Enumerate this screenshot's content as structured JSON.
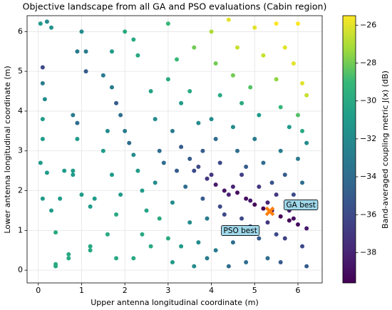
{
  "chart_data": {
    "type": "scatter",
    "title": "Objective landscape from all GA and PSO evaluations (Cabin region)",
    "xlabel": "Upper antenna longitudinal coordinate (m)",
    "ylabel": "Lower antenna longitudinal coordinate (m)",
    "colorbar_label": "Band-averaged coupling metric J(x) (dB)",
    "cmap": "viridis",
    "grid": true,
    "xlim": [
      -0.26,
      6.56
    ],
    "ylim": [
      -0.32,
      6.4
    ],
    "clim": [
      -39.6,
      -25.5
    ],
    "xticks": [
      0,
      1,
      2,
      3,
      4,
      5,
      6
    ],
    "yticks": [
      0,
      1,
      2,
      3,
      4,
      5,
      6
    ],
    "cticks": [
      {
        "value": -38,
        "label": "−38"
      },
      {
        "value": -36,
        "label": "−36"
      },
      {
        "value": -34,
        "label": "−34"
      },
      {
        "value": -32,
        "label": "−32"
      },
      {
        "value": -30,
        "label": "−30"
      },
      {
        "value": -28,
        "label": "−28"
      },
      {
        "value": -26,
        "label": "−26"
      }
    ],
    "x": [
      0.05,
      0.2,
      0.3,
      0.1,
      0.1,
      0.15,
      0.1,
      0.1,
      0.05,
      0.2,
      0.1,
      0.3,
      0.4,
      0.4,
      0.4,
      0.7,
      0.7,
      0.5,
      0.6,
      0.8,
      0.8,
      0.9,
      0.8,
      0.9,
      1.0,
      0.9,
      1.1,
      1.1,
      1.2,
      1.2,
      1.3,
      1.2,
      1.0,
      1.5,
      1.7,
      1.8,
      1.9,
      1.6,
      1.5,
      1.7,
      1.9,
      1.8,
      1.6,
      1.8,
      1.7,
      2.0,
      2.2,
      2.3,
      2.0,
      2.1,
      2.2,
      2.3,
      2.4,
      2.5,
      2.4,
      2.6,
      2.2,
      2.6,
      2.7,
      2.8,
      2.9,
      2.7,
      2.8,
      3.0,
      3.1,
      3.0,
      3.2,
      3.0,
      3.3,
      3.1,
      3.3,
      3.2,
      3.4,
      3.1,
      3.5,
      3.3,
      3.6,
      3.6,
      3.5,
      3.7,
      3.8,
      3.7,
      3.9,
      3.8,
      3.9,
      3.7,
      3.9,
      4.0,
      4.1,
      4.2,
      4.0,
      4.1,
      4.2,
      4.1,
      4.3,
      4.2,
      4.3,
      4.1,
      4.4,
      4.4,
      4.6,
      4.5,
      4.7,
      4.5,
      4.6,
      4.7,
      4.6,
      4.8,
      4.7,
      4.5,
      4.8,
      5.0,
      5.2,
      4.9,
      5.1,
      5.0,
      5.2,
      5.1,
      5.0,
      5.2,
      5.3,
      5.1,
      5.3,
      5.5,
      5.7,
      5.5,
      5.6,
      5.8,
      5.6,
      5.7,
      5.5,
      5.6,
      5.8,
      5.7,
      5.6,
      6.0,
      5.9,
      6.1,
      6.2,
      6.0,
      6.1,
      6.2,
      6.0,
      6.1,
      6.2,
      6.0,
      6.2,
      6.1,
      6.2,
      4.4,
      4.9,
      5.4,
      5.9,
      4.5,
      5.3,
      5.8,
      4.0,
      3.6,
      3.5,
      4.8,
      5.4,
      5.9,
      4.3,
      4.9,
      5.5
    ],
    "y": [
      6.2,
      6.25,
      6.1,
      5.1,
      4.7,
      4.3,
      3.8,
      3.3,
      2.7,
      2.45,
      1.8,
      1.5,
      0.95,
      0.15,
      0.1,
      0.3,
      0.4,
      1.8,
      2.5,
      2.5,
      2.4,
      3.3,
      3.9,
      3.7,
      6.0,
      5.5,
      5.5,
      5.0,
      0.6,
      0.5,
      1.8,
      1.6,
      1.9,
      4.9,
      4.6,
      4.2,
      3.9,
      3.5,
      3.0,
      2.4,
      1.9,
      1.4,
      0.9,
      0.3,
      5.5,
      6.0,
      5.8,
      5.4,
      3.5,
      3.2,
      2.9,
      2.5,
      2.0,
      1.5,
      0.9,
      0.6,
      0.3,
      4.5,
      3.8,
      3.0,
      2.7,
      2.2,
      1.3,
      0.8,
      0.2,
      6.2,
      5.3,
      4.8,
      4.2,
      3.5,
      3.1,
      2.5,
      2.1,
      1.7,
      1.2,
      0.6,
      0.1,
      5.6,
      4.5,
      3.7,
      3.0,
      2.6,
      2.3,
      1.8,
      1.3,
      0.7,
      0.3,
      6.0,
      5.2,
      4.4,
      3.8,
      3.3,
      2.7,
      2.15,
      2.0,
      1.6,
      1.0,
      0.5,
      0.1,
      6.3,
      5.6,
      4.9,
      4.2,
      3.6,
      3.0,
      2.4,
      1.95,
      1.8,
      1.3,
      0.7,
      0.2,
      6.1,
      5.4,
      4.6,
      3.9,
      3.3,
      2.7,
      2.1,
      1.65,
      1.55,
      1.2,
      0.8,
      0.3,
      6.2,
      5.6,
      4.8,
      4.1,
      3.6,
      3.0,
      2.4,
      1.9,
      1.35,
      1.25,
      0.8,
      0.2,
      6.2,
      5.2,
      4.7,
      4.4,
      3.9,
      3.5,
      3.2,
      2.8,
      2.2,
      1.7,
      1.15,
      1.05,
      0.6,
      0.1,
      1.9,
      1.75,
      1.5,
      1.3,
      2.1,
      1.7,
      1.5,
      2.4,
      2.5,
      2.8,
      2.6,
      2.2,
      1.9,
      1.4,
      1.1,
      0.9
    ],
    "values": [
      -31,
      -32,
      -31.5,
      -36,
      -33,
      -32,
      -31,
      -31,
      -31,
      -31,
      -31,
      -31,
      -30,
      -30,
      -30,
      -30,
      -30,
      -31,
      -31,
      -31,
      -31,
      -31,
      -33,
      -34,
      -32,
      -33,
      -33,
      -35,
      -30,
      -30,
      -31,
      -31,
      -31,
      -33,
      -33,
      -35,
      -34,
      -32,
      -31,
      -31,
      -31,
      -30,
      -30,
      -30,
      -31,
      -30,
      -30,
      -30,
      -33,
      -34,
      -32,
      -31,
      -31,
      -30.5,
      -30,
      -30,
      -30,
      -30.5,
      -32,
      -34,
      -34,
      -32,
      -30,
      -30,
      -31,
      -29,
      -29,
      -30,
      -31,
      -33,
      -35,
      -35,
      -34,
      -32,
      -32,
      -31,
      -32,
      -28,
      -30,
      -32,
      -35,
      -36,
      -37,
      -35,
      -33,
      -32,
      -33,
      -27,
      -28,
      -30,
      -32,
      -34,
      -36,
      -38.5,
      -38.8,
      -36,
      -34,
      -33,
      -34,
      -26,
      -26.5,
      -28,
      -30,
      -32,
      -34,
      -36.5,
      -39,
      -39,
      -36,
      -34,
      -34,
      -26,
      -26.5,
      -28.5,
      -31,
      -33,
      -34,
      -37,
      -39.3,
      -39.5,
      -37,
      -35,
      -34,
      -25.5,
      -26,
      -27.5,
      -29,
      -31,
      -33,
      -35,
      -37,
      -39.5,
      -39.4,
      -36.5,
      -35,
      -25.5,
      -26,
      -26,
      -26.5,
      -28.5,
      -30,
      -32,
      -33,
      -34,
      -36,
      -39,
      -38.5,
      -36,
      -35,
      -38,
      -38.5,
      -39.3,
      -39,
      -38,
      -38,
      -38,
      -37,
      -36,
      -35,
      -35,
      -35.5,
      -36,
      -36,
      -36,
      -36
    ],
    "best": {
      "x": 5.35,
      "y": 1.48,
      "color": "#ff7f0e"
    },
    "annotations": [
      {
        "text": "GA best",
        "x": 5.35,
        "y": 1.48
      },
      {
        "text": "PSO best",
        "x": 5.35,
        "y": 1.48
      }
    ]
  }
}
